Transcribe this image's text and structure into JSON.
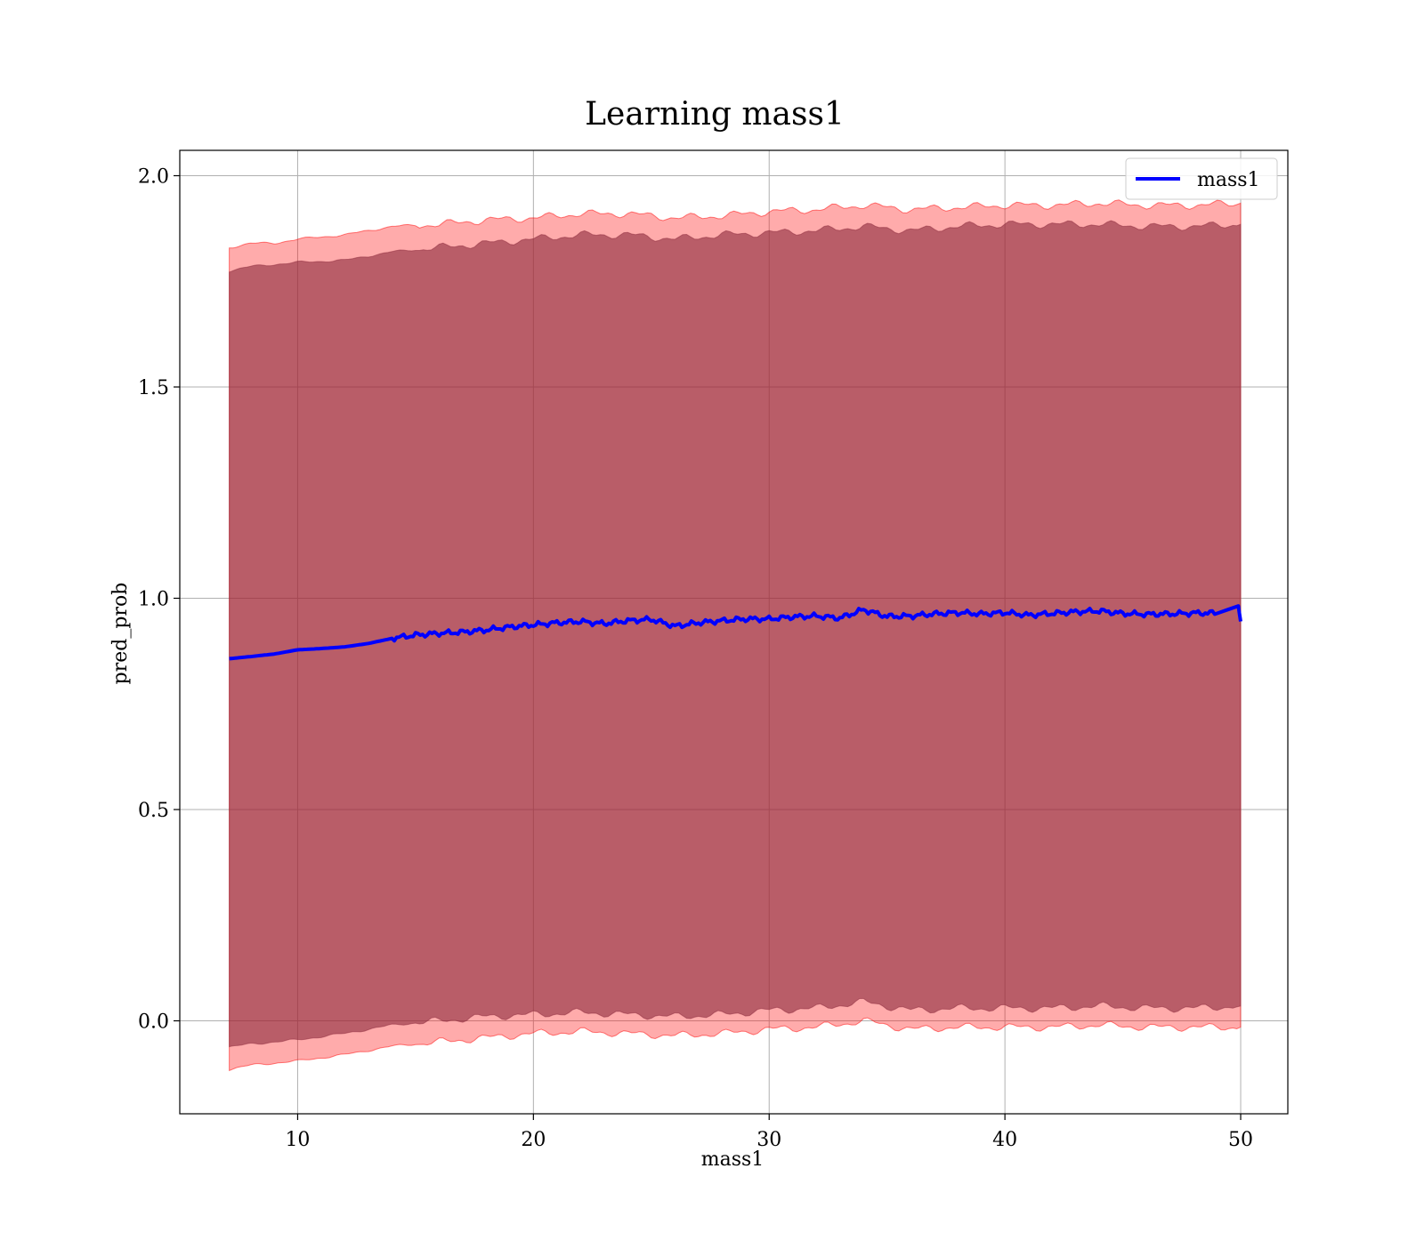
{
  "chart_data": {
    "type": "line",
    "title": "Learning mass1",
    "xlabel": "mass1",
    "ylabel": "pred_prob",
    "xlim": [
      5,
      52
    ],
    "ylim": [
      -0.22,
      2.06
    ],
    "xticks": [
      10,
      20,
      30,
      40,
      50
    ],
    "yticks": [
      0.0,
      0.5,
      1.0,
      1.5,
      2.0
    ],
    "xtick_labels": [
      "10",
      "20",
      "30",
      "40",
      "50"
    ],
    "ytick_labels": [
      "0.0",
      "0.5",
      "1.0",
      "1.5",
      "2.0"
    ],
    "grid": true,
    "legend": {
      "position": "top-right",
      "entries": [
        "mass1"
      ]
    },
    "colors": {
      "line": "#0000ff",
      "outer_band": "#ff0000",
      "inner_band": "#8b2a3c",
      "grid": "#b0b0b0"
    },
    "series": [
      {
        "name": "mass1",
        "x": [
          7.1,
          8,
          9,
          10,
          11,
          12,
          13,
          14,
          15,
          16,
          17,
          18,
          19,
          20,
          21,
          22,
          23,
          24,
          25,
          26,
          27,
          28,
          29,
          30,
          31,
          32,
          33,
          34,
          35,
          36,
          37,
          38,
          39,
          40,
          41,
          42,
          43,
          44,
          45,
          46,
          47,
          48,
          49,
          49.9,
          50
        ],
        "y": [
          0.857,
          0.862,
          0.868,
          0.878,
          0.881,
          0.885,
          0.893,
          0.905,
          0.913,
          0.917,
          0.92,
          0.925,
          0.932,
          0.937,
          0.942,
          0.945,
          0.94,
          0.947,
          0.95,
          0.934,
          0.942,
          0.947,
          0.951,
          0.951,
          0.956,
          0.958,
          0.953,
          0.973,
          0.957,
          0.958,
          0.963,
          0.966,
          0.963,
          0.966,
          0.96,
          0.964,
          0.968,
          0.97,
          0.964,
          0.962,
          0.963,
          0.965,
          0.965,
          0.98,
          0.945
        ]
      }
    ],
    "bands": [
      {
        "label": "outer",
        "x": [
          7.1,
          8,
          9,
          10,
          12,
          14,
          16,
          18,
          20,
          22,
          24,
          26,
          28,
          30,
          32,
          34,
          36,
          38,
          40,
          42,
          44,
          46,
          48,
          50
        ],
        "upper": [
          1.83,
          1.84,
          1.84,
          1.85,
          1.86,
          1.88,
          1.885,
          1.895,
          1.9,
          1.91,
          1.91,
          1.9,
          1.905,
          1.915,
          1.92,
          1.93,
          1.92,
          1.925,
          1.93,
          1.93,
          1.935,
          1.93,
          1.93,
          1.935
        ],
        "lower": [
          -0.115,
          -0.105,
          -0.1,
          -0.095,
          -0.08,
          -0.06,
          -0.05,
          -0.04,
          -0.03,
          -0.025,
          -0.03,
          -0.035,
          -0.03,
          -0.02,
          -0.015,
          0.0,
          -0.02,
          -0.015,
          -0.015,
          -0.015,
          -0.01,
          -0.015,
          -0.015,
          -0.015
        ]
      },
      {
        "label": "inner",
        "x": [
          7.1,
          8,
          9,
          10,
          12,
          14,
          16,
          18,
          20,
          22,
          24,
          26,
          28,
          30,
          32,
          34,
          36,
          38,
          40,
          42,
          44,
          46,
          48,
          50
        ],
        "upper": [
          1.775,
          1.785,
          1.79,
          1.795,
          1.8,
          1.82,
          1.83,
          1.84,
          1.85,
          1.86,
          1.86,
          1.85,
          1.86,
          1.865,
          1.87,
          1.88,
          1.87,
          1.88,
          1.885,
          1.885,
          1.885,
          1.88,
          1.88,
          1.885
        ],
        "lower": [
          -0.062,
          -0.055,
          -0.05,
          -0.045,
          -0.03,
          -0.01,
          0.0,
          0.01,
          0.015,
          0.02,
          0.015,
          0.01,
          0.015,
          0.025,
          0.03,
          0.045,
          0.025,
          0.03,
          0.03,
          0.03,
          0.035,
          0.03,
          0.03,
          0.035
        ]
      }
    ]
  }
}
